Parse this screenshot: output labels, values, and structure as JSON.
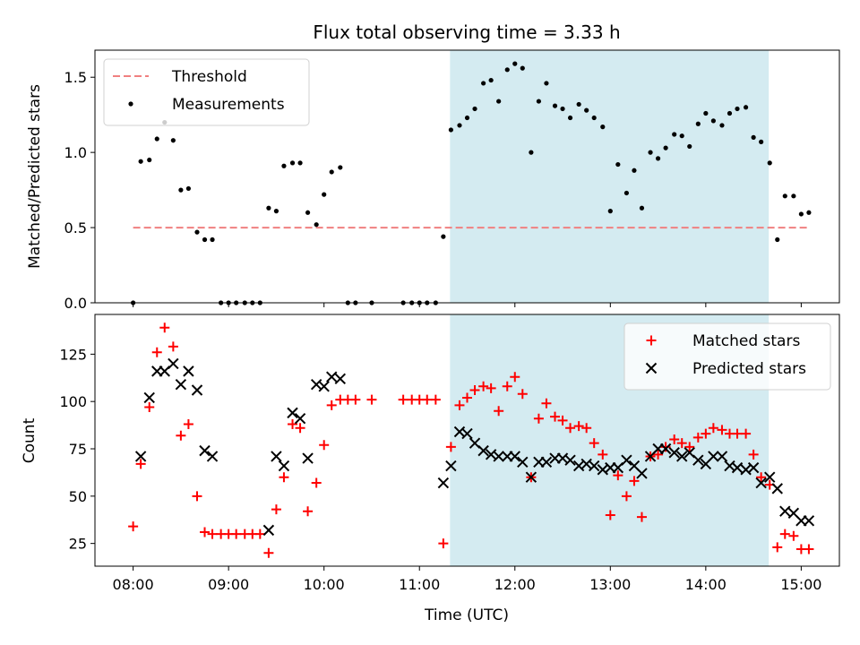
{
  "chart_data": [
    {
      "type": "scatter",
      "title": "Flux total observing time = 3.33 h",
      "ylabel": "Matched/Predicted stars",
      "xlabel": "",
      "x_unit": "hours_utc",
      "xlim": [
        7.6,
        15.4
      ],
      "ylim": [
        0.0,
        1.68
      ],
      "yticks": [
        0.0,
        0.5,
        1.0,
        1.5
      ],
      "ytick_labels": [
        "0.0",
        "0.5",
        "1.0",
        "1.5"
      ],
      "xticks": [
        8,
        9,
        10,
        11,
        12,
        13,
        14,
        15
      ],
      "show_xtick_labels": false,
      "highlight_span": [
        11.32,
        14.66
      ],
      "highlight_color": "#d4ebf1",
      "legend_loc": "upper-left",
      "series": [
        {
          "name": "Threshold",
          "kind": "dashed-line",
          "color": "#f08080",
          "x": [
            8.0,
            15.08
          ],
          "y": [
            0.5,
            0.5
          ]
        },
        {
          "name": "Measurements",
          "kind": "dot",
          "color": "#000000",
          "x": [
            8.0,
            8.08,
            8.17,
            8.25,
            8.33,
            8.42,
            8.5,
            8.58,
            8.67,
            8.75,
            8.83,
            8.92,
            9.0,
            9.08,
            9.17,
            9.25,
            9.33,
            9.42,
            9.5,
            9.58,
            9.67,
            9.75,
            9.83,
            9.92,
            10.0,
            10.08,
            10.17,
            10.25,
            10.33,
            10.5,
            10.83,
            10.92,
            11.0,
            11.08,
            11.17,
            11.25,
            11.33,
            11.42,
            11.5,
            11.58,
            11.67,
            11.75,
            11.83,
            11.92,
            12.0,
            12.08,
            12.17,
            12.25,
            12.33,
            12.42,
            12.5,
            12.58,
            12.67,
            12.75,
            12.83,
            12.92,
            13.0,
            13.08,
            13.17,
            13.25,
            13.33,
            13.42,
            13.5,
            13.58,
            13.67,
            13.75,
            13.83,
            13.92,
            14.0,
            14.08,
            14.17,
            14.25,
            14.33,
            14.42,
            14.5,
            14.58,
            14.67,
            14.75,
            14.83,
            14.92,
            15.0,
            15.08
          ],
          "y": [
            0.0,
            0.94,
            0.95,
            1.09,
            1.2,
            1.08,
            0.75,
            0.76,
            0.47,
            0.42,
            0.42,
            0.0,
            0.0,
            0.0,
            0.0,
            0.0,
            0.0,
            0.63,
            0.61,
            0.91,
            0.93,
            0.93,
            0.6,
            0.52,
            0.72,
            0.87,
            0.9,
            0.0,
            0.0,
            0.0,
            0.0,
            0.0,
            0.0,
            0.0,
            0.0,
            0.44,
            1.15,
            1.18,
            1.23,
            1.29,
            1.46,
            1.48,
            1.34,
            1.55,
            1.59,
            1.56,
            1.0,
            1.34,
            1.46,
            1.31,
            1.29,
            1.23,
            1.32,
            1.28,
            1.23,
            1.17,
            0.61,
            0.92,
            0.73,
            0.88,
            0.63,
            1.0,
            0.96,
            1.03,
            1.12,
            1.11,
            1.04,
            1.19,
            1.26,
            1.21,
            1.18,
            1.26,
            1.29,
            1.3,
            1.1,
            1.07,
            0.93,
            0.42,
            0.71,
            0.71,
            0.59,
            0.6
          ]
        }
      ]
    },
    {
      "type": "scatter",
      "title": "",
      "ylabel": "Count",
      "xlabel": "Time (UTC)",
      "x_unit": "hours_utc",
      "xlim": [
        7.6,
        15.4
      ],
      "ylim": [
        13,
        146
      ],
      "yticks": [
        25,
        50,
        75,
        100,
        125
      ],
      "ytick_labels": [
        "25",
        "50",
        "75",
        "100",
        "125"
      ],
      "xticks": [
        8,
        9,
        10,
        11,
        12,
        13,
        14,
        15
      ],
      "xtick_labels": [
        "08:00",
        "09:00",
        "10:00",
        "11:00",
        "12:00",
        "13:00",
        "14:00",
        "15:00"
      ],
      "highlight_span": [
        11.32,
        14.66
      ],
      "highlight_color": "#d4ebf1",
      "legend_loc": "upper-right",
      "series": [
        {
          "name": "Matched stars",
          "kind": "plus",
          "color": "#ff0000",
          "x": [
            8.0,
            8.08,
            8.17,
            8.25,
            8.33,
            8.42,
            8.5,
            8.58,
            8.67,
            8.75,
            8.83,
            8.92,
            9.0,
            9.08,
            9.17,
            9.25,
            9.33,
            9.42,
            9.5,
            9.58,
            9.67,
            9.75,
            9.83,
            9.92,
            10.0,
            10.08,
            10.17,
            10.25,
            10.33,
            10.5,
            10.83,
            10.92,
            11.0,
            11.08,
            11.17,
            11.25,
            11.33,
            11.42,
            11.5,
            11.58,
            11.67,
            11.75,
            11.83,
            11.92,
            12.0,
            12.08,
            12.17,
            12.25,
            12.33,
            12.42,
            12.5,
            12.58,
            12.67,
            12.75,
            12.83,
            12.92,
            13.0,
            13.08,
            13.17,
            13.25,
            13.33,
            13.42,
            13.5,
            13.58,
            13.67,
            13.75,
            13.83,
            13.92,
            14.0,
            14.08,
            14.17,
            14.25,
            14.33,
            14.42,
            14.5,
            14.58,
            14.67,
            14.75,
            14.83,
            14.92,
            15.0,
            15.08
          ],
          "y": [
            34,
            67,
            97,
            126,
            139,
            129,
            82,
            88,
            50,
            31,
            30,
            30,
            30,
            30,
            30,
            30,
            30,
            20,
            43,
            60,
            88,
            86,
            42,
            57,
            77,
            98,
            101,
            101,
            101,
            101,
            101,
            101,
            101,
            101,
            101,
            25,
            76,
            98,
            102,
            106,
            108,
            107,
            95,
            108,
            113,
            104,
            60,
            91,
            99,
            92,
            90,
            86,
            87,
            86,
            78,
            72,
            40,
            61,
            50,
            58,
            39,
            71,
            72,
            76,
            80,
            78,
            76,
            81,
            83,
            86,
            85,
            83,
            83,
            83,
            72,
            60,
            56,
            23,
            30,
            29,
            22,
            22
          ]
        },
        {
          "name": "Predicted stars",
          "kind": "x",
          "color": "#000000",
          "x": [
            8.08,
            8.17,
            8.25,
            8.33,
            8.42,
            8.5,
            8.58,
            8.67,
            8.75,
            8.83,
            9.42,
            9.5,
            9.58,
            9.67,
            9.75,
            9.83,
            9.92,
            10.0,
            10.08,
            10.17,
            11.25,
            11.33,
            11.42,
            11.5,
            11.58,
            11.67,
            11.75,
            11.83,
            11.92,
            12.0,
            12.08,
            12.17,
            12.25,
            12.33,
            12.42,
            12.5,
            12.58,
            12.67,
            12.75,
            12.83,
            12.92,
            13.0,
            13.08,
            13.17,
            13.25,
            13.33,
            13.42,
            13.5,
            13.58,
            13.67,
            13.75,
            13.83,
            13.92,
            14.0,
            14.08,
            14.17,
            14.25,
            14.33,
            14.42,
            14.5,
            14.58,
            14.67,
            14.75,
            14.83,
            14.92,
            15.0,
            15.08
          ],
          "y": [
            71,
            102,
            116,
            116,
            120,
            109,
            116,
            106,
            74,
            71,
            32,
            71,
            66,
            94,
            91,
            70,
            109,
            108,
            113,
            112,
            57,
            66,
            84,
            83,
            78,
            74,
            72,
            71,
            71,
            71,
            68,
            60,
            68,
            68,
            70,
            70,
            69,
            66,
            67,
            66,
            64,
            65,
            65,
            69,
            66,
            62,
            71,
            75,
            75,
            73,
            71,
            73,
            69,
            67,
            71,
            71,
            66,
            65,
            64,
            65,
            57,
            60,
            54,
            42,
            41,
            37,
            37
          ]
        }
      ]
    }
  ]
}
